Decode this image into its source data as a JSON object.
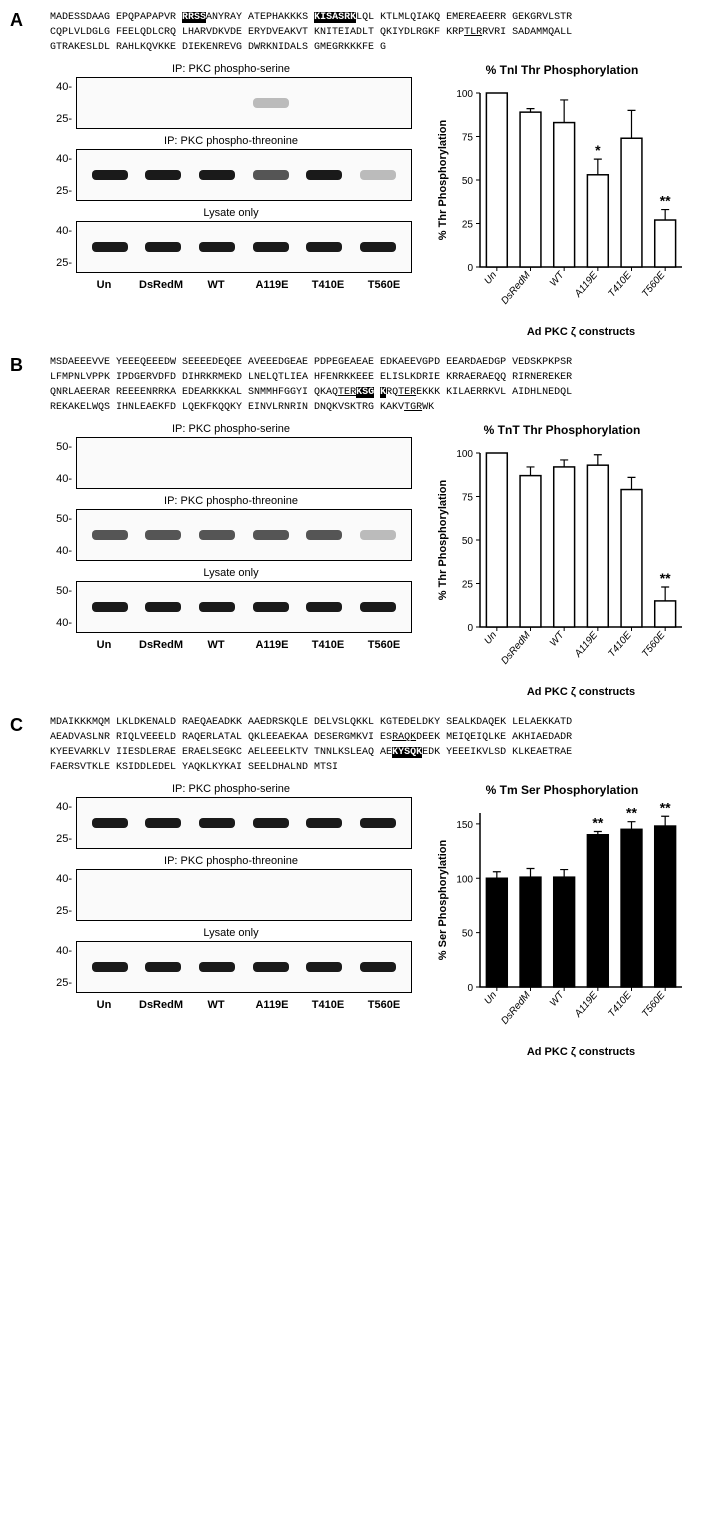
{
  "lane_labels": [
    "Un",
    "DsRedM",
    "WT",
    "A119E",
    "T410E",
    "T560E"
  ],
  "chart_categories": [
    "Un",
    "DsRedM",
    "WT",
    "A119E",
    "T410E",
    "T560E"
  ],
  "x_axis_label": "Ad PKC ζ constructs",
  "panels": {
    "A": {
      "sequence_rows": [
        [
          {
            "t": "MADESSDAAG EPQPAPAPVR ",
            "h": false
          },
          {
            "t": "RRSS",
            "h": true
          },
          {
            "t": "ANYRAY ATEPHAKKKS ",
            "h": false
          },
          {
            "t": "KISASRK",
            "h": true
          },
          {
            "t": "LQL KTLMLQIAKQ EMEREAEERR GEKGRVLSTR",
            "h": false
          }
        ],
        [
          {
            "t": "CQPLVLDGLG FEELQDLCRQ LHARVDKVDE ERYDVEAKVT KNITEIADLT QKIYDLRGKF KRP",
            "h": false
          },
          {
            "t": "TLR",
            "u": true
          },
          {
            "t": "RVRI SADAMMQALL",
            "h": false
          }
        ],
        [
          {
            "t": "GTRAKESLDL RAHLKQVKKE DIEKENREVG DWRKNIDALS GMEGRKKKFE G",
            "h": false
          }
        ]
      ],
      "blots": [
        {
          "title": "IP: PKC phospho-serine",
          "mw": [
            "40-",
            "25-"
          ],
          "bands": [
            "none",
            "none",
            "none",
            "faint",
            "none",
            "none"
          ]
        },
        {
          "title": "IP: PKC phospho-threonine",
          "mw": [
            "40-",
            "25-"
          ],
          "bands": [
            "dark",
            "dark",
            "dark",
            "med",
            "dark",
            "faint"
          ]
        },
        {
          "title": "Lysate only",
          "mw": [
            "40-",
            "25-"
          ],
          "bands": [
            "dark",
            "dark",
            "dark",
            "dark",
            "dark",
            "dark"
          ]
        }
      ],
      "chart": {
        "title": "% TnI Thr Phosphorylation",
        "y_label": "% Thr Phosphorylation",
        "ylim": [
          0,
          100
        ],
        "ytick_step": 25,
        "bar_fill": "#ffffff",
        "bar_stroke": "#000000",
        "values": [
          100,
          89,
          83,
          53,
          74,
          27
        ],
        "errors": [
          0,
          2,
          13,
          9,
          16,
          6
        ],
        "sig": [
          "",
          "",
          "",
          "*",
          "",
          "**"
        ]
      }
    },
    "B": {
      "sequence_rows": [
        [
          {
            "t": "MSDAEEEVVE YEEEQEEEDW SEEEEDEQEE AVEEEDGEAE PDPEGEAEAE EDKAEEVGPD EEARDAEDGP VEDSKPKPSR",
            "h": false
          }
        ],
        [
          {
            "t": "LFMPNLVPPK IPDGERVDFD DIHRKRMEKD LNELQTLIEA HFENRKKEEE ELISLKDRIE KRRAERAEQQ RIRNEREKER",
            "h": false
          }
        ],
        [
          {
            "t": "QNRLAEERAR REEEENRRKA EDEARKKKAL SNMMHFGGYI QKAQ",
            "h": false
          },
          {
            "t": "TER",
            "u": true
          },
          {
            "t": "KSG",
            "h": true
          },
          {
            "t": " ",
            "h": false
          },
          {
            "t": "K",
            "h": true
          },
          {
            "t": "RQ",
            "h": false
          },
          {
            "t": "TER",
            "u": true
          },
          {
            "t": "EKKK KILAERRKVL AIDHLNEDQL",
            "h": false
          }
        ],
        [
          {
            "t": "REKAKELWQS IHNLEAEKFD LQEKFKQQKY EINVLRNRIN DNQKVSKTRG KAKV",
            "h": false
          },
          {
            "t": "TGR",
            "u": true
          },
          {
            "t": "WK",
            "h": false
          }
        ]
      ],
      "blots": [
        {
          "title": "IP: PKC phospho-serine",
          "mw": [
            "50-",
            "40-"
          ],
          "bands": [
            "none",
            "none",
            "none",
            "none",
            "none",
            "none"
          ]
        },
        {
          "title": "IP: PKC phospho-threonine",
          "mw": [
            "50-",
            "40-"
          ],
          "bands": [
            "med",
            "med",
            "med",
            "med",
            "med",
            "faint"
          ]
        },
        {
          "title": "Lysate only",
          "mw": [
            "50-",
            "40-"
          ],
          "bands": [
            "dark",
            "dark",
            "dark",
            "dark",
            "dark",
            "dark"
          ]
        }
      ],
      "chart": {
        "title": "% TnT Thr Phosphorylation",
        "y_label": "% Thr Phosphorylation",
        "ylim": [
          0,
          100
        ],
        "ytick_step": 25,
        "bar_fill": "#ffffff",
        "bar_stroke": "#000000",
        "values": [
          100,
          87,
          92,
          93,
          79,
          15
        ],
        "errors": [
          0,
          5,
          4,
          6,
          7,
          8
        ],
        "sig": [
          "",
          "",
          "",
          "",
          "",
          "**"
        ]
      }
    },
    "C": {
      "sequence_rows": [
        [
          {
            "t": "MDAIKKKMQM LKLDKENALD RAEQAEADKK AAEDRSKQLE DELVSLQKKL KGTEDELDKY SEALKDAQEK LELAEKKATD",
            "h": false
          }
        ],
        [
          {
            "t": "AEADVASLNR RIQLVEEELD RAQERLATAL QKLEEAEKAA DESERGMKVI ES",
            "h": false
          },
          {
            "t": "RAQK",
            "u": true
          },
          {
            "t": "DEEK MEIQEIQLKE AKHIAEDADR",
            "h": false
          }
        ],
        [
          {
            "t": "KYEEVARKLV IIESDLERAE ERAELSEGKC AELEEELKTV TNNLKSLEAQ AE",
            "h": false
          },
          {
            "t": "KYSQK",
            "h": true
          },
          {
            "t": "EDK YEEEIKVLSD KLKEAETRAE",
            "h": false
          }
        ],
        [
          {
            "t": "FAERSVTKLE KSIDDLEDEL YAQKLKYKAI SEELDHALND MTSI",
            "h": false
          }
        ]
      ],
      "blots": [
        {
          "title": "IP: PKC phospho-serine",
          "mw": [
            "40-",
            "25-"
          ],
          "bands": [
            "dark",
            "dark",
            "dark",
            "dark",
            "dark",
            "dark"
          ]
        },
        {
          "title": "IP: PKC phospho-threonine",
          "mw": [
            "40-",
            "25-"
          ],
          "bands": [
            "none",
            "none",
            "none",
            "none",
            "none",
            "none"
          ]
        },
        {
          "title": "Lysate only",
          "mw": [
            "40-",
            "25-"
          ],
          "bands": [
            "dark",
            "dark",
            "dark",
            "dark",
            "dark",
            "dark"
          ]
        }
      ],
      "chart": {
        "title": "% Tm Ser Phosphorylation",
        "y_label": "% Ser Phosphorylation",
        "ylim": [
          0,
          160
        ],
        "ytick_step": 50,
        "bar_fill": "#000000",
        "bar_stroke": "#000000",
        "values": [
          100,
          101,
          101,
          140,
          145,
          148
        ],
        "errors": [
          6,
          8,
          7,
          3,
          7,
          9
        ],
        "sig": [
          "",
          "",
          "",
          "**",
          "**",
          "**"
        ]
      }
    }
  }
}
